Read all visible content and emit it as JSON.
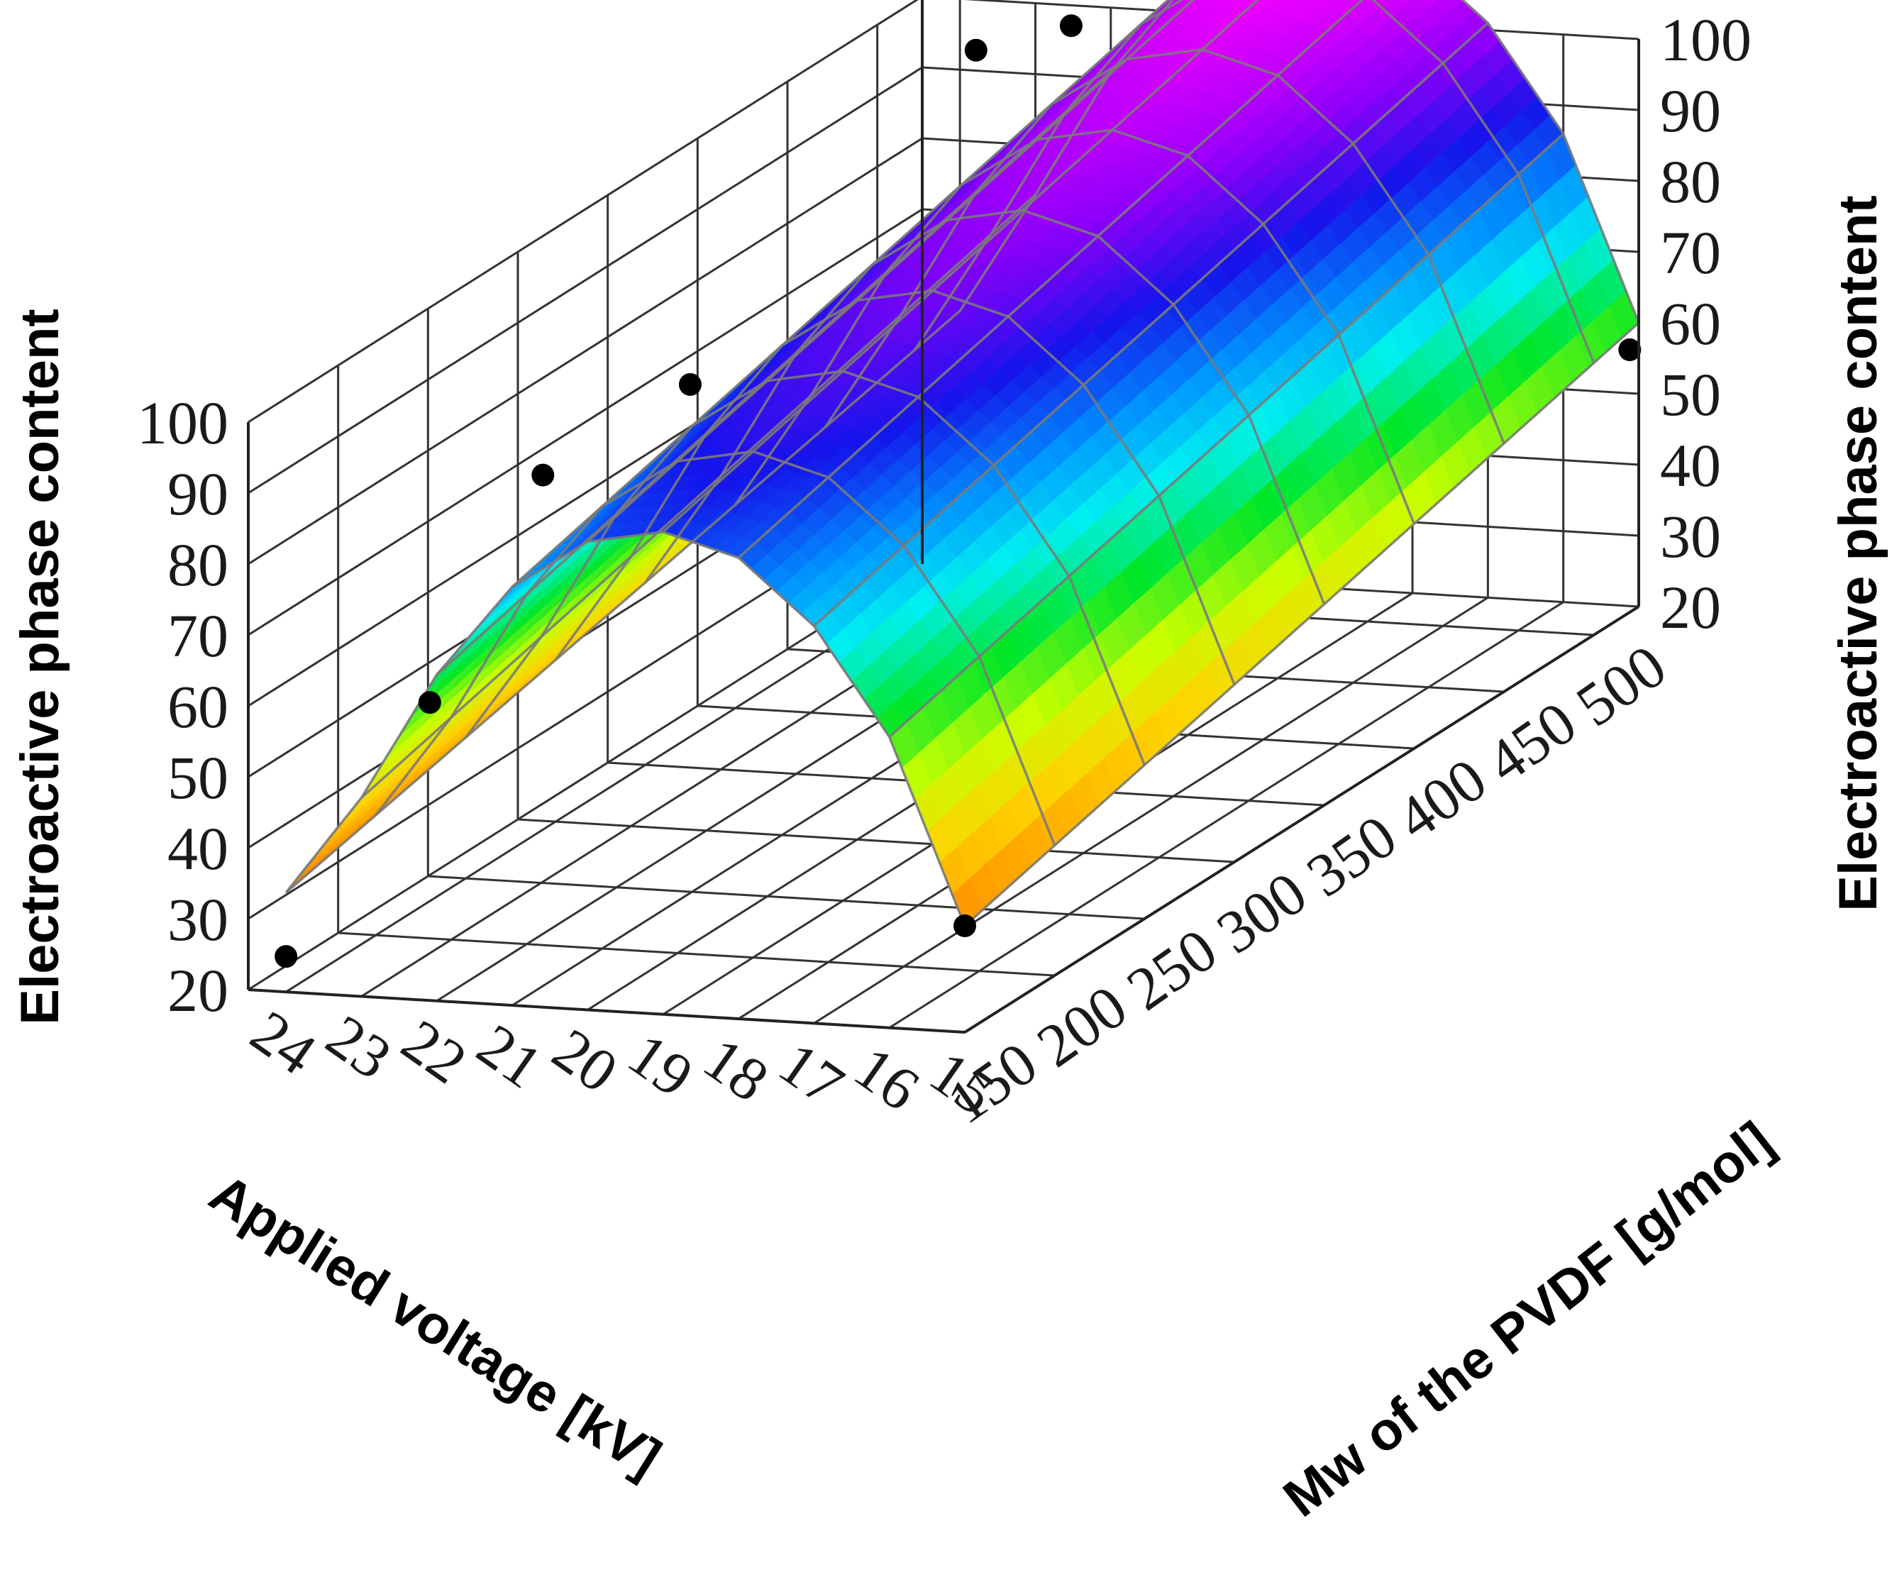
{
  "chart_data": {
    "type": "surface",
    "title": "",
    "zlabel_left": "Electroactive  phase  content",
    "zlabel_right": "Electroactive  phase  content",
    "xlabel": "Applied  voltage [kV]",
    "ylabel": "Mw of the PVDF [g/mol]",
    "voltage_ticks": [
      "24",
      "23",
      "22",
      "21",
      "20",
      "19",
      "18",
      "17",
      "16",
      "15"
    ],
    "mw_ticks": [
      "150",
      "200",
      "250",
      "300",
      "350",
      "400",
      "450",
      "500"
    ],
    "z_ticks_left": [
      "20",
      "30",
      "40",
      "50",
      "60",
      "70",
      "80",
      "90",
      "100"
    ],
    "z_ticks_right": [
      "20",
      "30",
      "40",
      "50",
      "60",
      "70",
      "80",
      "90",
      "100"
    ],
    "voltage_range": [
      15,
      24.5
    ],
    "mw_range": [
      150,
      525
    ],
    "zlim": [
      20,
      100
    ],
    "grid": true,
    "colormap": [
      "orange",
      "yellow",
      "green",
      "cyan",
      "blue",
      "violet",
      "magenta"
    ],
    "surface_rows": [
      {
        "mw": 150,
        "values": [
          35,
          61,
          76,
          85,
          88,
          86,
          79,
          66,
          48,
          34
        ]
      },
      {
        "mw": 525,
        "values": [
          60,
          86,
          101,
          110,
          113,
          111,
          104,
          91,
          73,
          56
        ]
      }
    ],
    "points": [
      {
        "mw": 150,
        "voltage": 24,
        "value": 25
      },
      {
        "mw": 150,
        "voltage": 15,
        "value": 35
      },
      {
        "mw": 230,
        "voltage": 24,
        "value": 48
      },
      {
        "mw": 520,
        "voltage": 15,
        "value": 57
      },
      {
        "mw": 230,
        "voltage": 22.5,
        "value": 81
      },
      {
        "mw": 270,
        "voltage": 21.5,
        "value": 88
      },
      {
        "mw": 450,
        "voltage": 22,
        "value": 106
      },
      {
        "mw": 440,
        "voltage": 20.5,
        "value": 112
      }
    ]
  }
}
